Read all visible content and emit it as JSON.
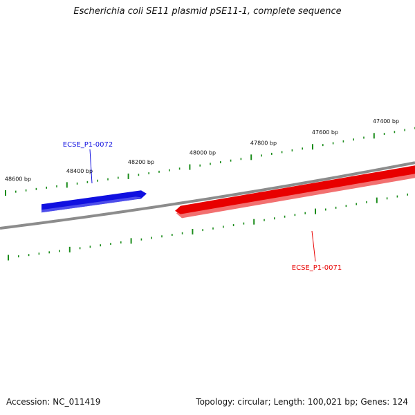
{
  "title": "Escherichia coli SE11 plasmid pSE11-1, complete sequence",
  "footer": {
    "accession": "Accession: NC_011419",
    "summary": "Topology: circular; Length: 100,021 bp; Genes: 124"
  },
  "colors": {
    "backbone": "#8c8c8c",
    "ticks": "#1a8c1a",
    "forward_gene": "#1010e0",
    "reverse_gene": "#e80000"
  },
  "ruler": {
    "labels": [
      "47400 bp",
      "47600 bp",
      "47800 bp",
      "48000 bp",
      "48200 bp",
      "48400 bp",
      "48600 bp"
    ]
  },
  "genes": [
    {
      "id": "ECSE_P1-0072",
      "label": "ECSE_P1-0072",
      "strand": "forward"
    },
    {
      "id": "ECSE_P1-0071",
      "label": "ECSE_P1-0071",
      "strand": "reverse"
    }
  ]
}
